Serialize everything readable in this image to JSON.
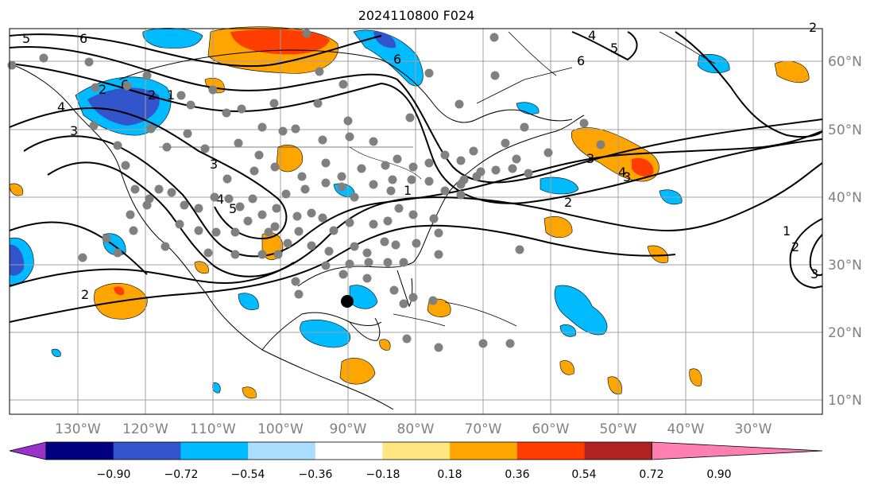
{
  "title": "2024110800 F024",
  "lon_labels": [
    "130°W",
    "120°W",
    "110°W",
    "100°W",
    "90°W",
    "80°W",
    "70°W",
    "60°W",
    "50°W",
    "40°W",
    "30°W"
  ],
  "lat_labels": [
    "60°N",
    "50°N",
    "40°N",
    "30°N",
    "20°N",
    "10°N"
  ],
  "colorbar": {
    "ticks": [
      "−0.90",
      "−0.72",
      "−0.54",
      "−0.36",
      "−0.18",
      "0.18",
      "0.36",
      "0.54",
      "0.72",
      "0.90"
    ],
    "colors": [
      "#9933cc",
      "#000080",
      "#3355cc",
      "#00bbff",
      "#aaddff",
      "#ffffff",
      "#ffe680",
      "#ffa500",
      "#ff3d00",
      "#b22222",
      "#ff80b0"
    ]
  },
  "contour_labels": [
    "5",
    "6",
    "4",
    "6",
    "6",
    "4",
    "5",
    "6",
    "2",
    "1",
    "2",
    "3",
    "3",
    "4",
    "5",
    "3",
    "2",
    "1",
    "2",
    "3",
    "4",
    "1",
    "2",
    "3",
    "2"
  ],
  "colors": {
    "land_marker": "#808080",
    "highlight_marker": "#000000",
    "contour": "#000000",
    "grid": "#a0a0a0"
  }
}
